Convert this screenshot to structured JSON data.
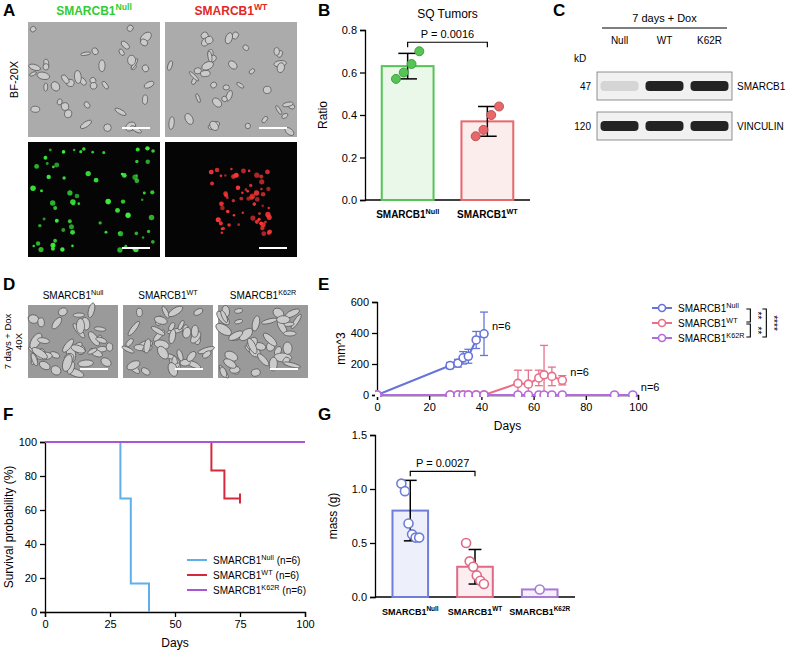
{
  "chart_data": [
    {
      "panel": "B",
      "type": "bar",
      "title": "SQ Tumors",
      "y_label": "Ratio",
      "category_prefix": "SMARCB1",
      "categories": [
        "Null",
        "WT"
      ],
      "values": [
        0.63,
        0.37
      ],
      "errors": [
        0.06,
        0.07
      ],
      "points": [
        [
          0.57,
          0.6,
          0.64,
          0.7
        ],
        [
          0.3,
          0.33,
          0.4,
          0.44
        ]
      ],
      "colors": [
        "#55c455",
        "#e8676a"
      ],
      "marker": "filled",
      "ylim": [
        0,
        0.8
      ],
      "yticks": [
        {
          "value": 0,
          "label": "0.0"
        },
        {
          "value": 0.2,
          "label": "0.2"
        },
        {
          "value": 0.4,
          "label": "0.4"
        },
        {
          "value": 0.6,
          "label": "0.6"
        },
        {
          "value": 0.8,
          "label": "0.8"
        }
      ],
      "comparison": {
        "between": [
          "Null",
          "WT"
        ],
        "label": "P = 0.0016"
      }
    },
    {
      "panel": "E",
      "type": "line",
      "y_label": "mm^3",
      "x_label": "Days",
      "name_prefix": "SMARCB1",
      "xlim": [
        0,
        100
      ],
      "xticks": [
        0,
        20,
        40,
        60,
        80,
        100
      ],
      "ylim": [
        0,
        600
      ],
      "yticks": [
        0,
        200,
        400,
        600
      ],
      "legend": "right",
      "marker": "open-circle",
      "series": [
        {
          "name": "Null",
          "color": "#6674d9",
          "annotation": "n=6",
          "x": [
            0,
            28,
            31,
            33,
            35,
            38,
            41
          ],
          "values": [
            0,
            190,
            205,
            240,
            250,
            355,
            395
          ],
          "errors": [
            0,
            20,
            25,
            40,
            45,
            55,
            140
          ]
        },
        {
          "name": "WT",
          "color": "#e8718a",
          "annotation": "n=6",
          "x": [
            0,
            28,
            31,
            33,
            35,
            38,
            41,
            54,
            58,
            62,
            64,
            67,
            71
          ],
          "values": [
            0,
            0,
            0,
            0,
            0,
            0,
            0,
            75,
            70,
            110,
            130,
            120,
            95
          ],
          "errors": [
            0,
            0,
            0,
            0,
            0,
            0,
            0,
            85,
            90,
            50,
            190,
            60,
            30
          ]
        },
        {
          "name": "K62R",
          "color": "#b36bdc",
          "annotation": "n=6",
          "x": [
            0,
            28,
            31,
            33,
            35,
            38,
            41,
            54,
            58,
            62,
            64,
            67,
            71,
            91,
            98
          ],
          "values": [
            0,
            0,
            0,
            0,
            0,
            0,
            0,
            0,
            0,
            0,
            0,
            0,
            0,
            0,
            0
          ],
          "errors": [
            0,
            0,
            0,
            0,
            0,
            0,
            0,
            0,
            0,
            0,
            0,
            0,
            0,
            0,
            0
          ]
        }
      ],
      "significance": [
        {
          "between": [
            "Null",
            "WT"
          ],
          "label": "**"
        },
        {
          "between": [
            "WT",
            "K62R"
          ],
          "label": "**"
        },
        {
          "between": [
            "Null",
            "K62R"
          ],
          "label": "****"
        }
      ]
    },
    {
      "panel": "F",
      "type": "line",
      "line_style": "step",
      "y_label": "Survival probability (%)",
      "x_label": "Days",
      "name_prefix": "SMARCB1",
      "xlim": [
        0,
        100
      ],
      "xticks": [
        0,
        25,
        50,
        75,
        100
      ],
      "ylim": [
        0,
        100
      ],
      "yticks": [
        0,
        20,
        40,
        60,
        80,
        100
      ],
      "legend": "bottom-right",
      "series": [
        {
          "name": "Null",
          "n_label": "(n=6)",
          "color": "#5fb0ea",
          "x": [
            0,
            29,
            33,
            40
          ],
          "values": [
            100,
            66.7,
            16.7,
            0
          ]
        },
        {
          "name": "WT",
          "n_label": "(n=6)",
          "color": "#d42a3e",
          "x": [
            0,
            64,
            69,
            75
          ],
          "values": [
            100,
            83.3,
            66.7,
            66.7
          ]
        },
        {
          "name": "K62R",
          "n_label": "(n=6)",
          "color": "#a855d6",
          "x": [
            0,
            100
          ],
          "values": [
            100,
            100
          ]
        }
      ]
    },
    {
      "panel": "G",
      "type": "bar",
      "y_label": "mass (g)",
      "category_prefix": "SMARCB1",
      "categories": [
        "Null",
        "WT",
        "K62R"
      ],
      "values": [
        0.8,
        0.28,
        0.07
      ],
      "errors": [
        0.28,
        0.16,
        null
      ],
      "points": [
        [
          1.05,
          0.98,
          0.68,
          0.58,
          0.55,
          0.55
        ],
        [
          0.5,
          0.33,
          0.28,
          0.2,
          0.15,
          0.12
        ],
        [
          0.07
        ]
      ],
      "colors": [
        "#6f7fd9",
        "#e06a86",
        "#a77ad6"
      ],
      "marker": "open",
      "ylim": [
        0,
        1.5
      ],
      "yticks": [
        {
          "value": 0,
          "label": "0.0"
        },
        {
          "value": 0.5,
          "label": "0.5"
        },
        {
          "value": 1.0,
          "label": "1.0"
        },
        {
          "value": 1.5,
          "label": "1.5"
        }
      ],
      "comparison": {
        "between": [
          "Null",
          "WT"
        ],
        "label": "P = 0.0027"
      }
    }
  ],
  "figure": {
    "panel_A": {
      "label": "A",
      "row_label": "BF-20X",
      "prefix": "SMARCB1",
      "columns": [
        "Null",
        "WT"
      ],
      "column_colors": [
        "#33cc33",
        "#e02828"
      ]
    },
    "panel_C": {
      "label": "C",
      "header": "7 days + Dox",
      "lanes": [
        "Null",
        "WT",
        "K62R"
      ],
      "unit": "kD",
      "rows": [
        {
          "kd": 47,
          "protein": "SMARCB1"
        },
        {
          "kd": 120,
          "protein": "VINCULIN"
        }
      ]
    },
    "panel_D": {
      "label": "D",
      "row_label": "7 days + Dox",
      "magnification": "40X",
      "prefix": "SMARCB1",
      "columns": [
        "Null",
        "WT",
        "K62R"
      ]
    }
  }
}
